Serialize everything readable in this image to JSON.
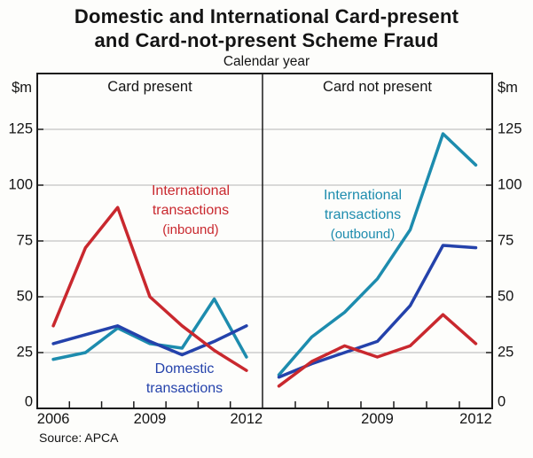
{
  "title": {
    "line1": "Domestic and International Card-present",
    "line2": "and Card-not-present Scheme Fraud"
  },
  "subtitle": "Calendar year",
  "source": "Source: APCA",
  "axis": {
    "unit": "$m"
  },
  "colors": {
    "inbound_red": "#c9282e",
    "domestic_blue": "#2442ab",
    "outbound_teal": "#1d8cae",
    "grid": "#b5b5b5",
    "axis_black": "#1a1a1a"
  },
  "chart_data": {
    "type": "line",
    "x": [
      2006,
      2007,
      2008,
      2009,
      2010,
      2011,
      2012
    ],
    "ylabel": "$m",
    "xlabel": "",
    "ylim": [
      0,
      150
    ],
    "y_ticks": [
      0,
      25,
      50,
      75,
      100,
      125
    ],
    "grid": true,
    "panels": [
      {
        "title": "Card present",
        "series": [
          {
            "name": "International transactions (outbound)",
            "color": "#1d8cae",
            "values": [
              22,
              25,
              36,
              29,
              27,
              49,
              23
            ]
          },
          {
            "name": "Domestic transactions",
            "color": "#2442ab",
            "values": [
              29,
              33,
              37,
              30,
              24,
              30,
              37
            ]
          },
          {
            "name": "International transactions (inbound)",
            "color": "#c9282e",
            "values": [
              37,
              72,
              90,
              50,
              37,
              26,
              17
            ]
          }
        ],
        "x_labels": [
          {
            "text": "2006",
            "index": 0
          },
          {
            "text": "2009",
            "index": 3
          },
          {
            "text": "2012",
            "index": 6
          }
        ]
      },
      {
        "title": "Card not present",
        "series": [
          {
            "name": "International transactions (outbound)",
            "color": "#1d8cae",
            "values": [
              15,
              32,
              43,
              58,
              80,
              123,
              109
            ]
          },
          {
            "name": "Domestic transactions",
            "color": "#2442ab",
            "values": [
              14,
              20,
              25,
              30,
              46,
              73,
              72
            ]
          },
          {
            "name": "International transactions (inbound)",
            "color": "#c9282e",
            "values": [
              10,
              21,
              28,
              23,
              28,
              42,
              29
            ]
          }
        ],
        "x_labels": [
          {
            "text": "2009",
            "index": 3
          },
          {
            "text": "2012",
            "index": 6
          }
        ]
      }
    ],
    "series_labels": [
      {
        "id": "inbound",
        "lines": [
          "International",
          "transactions",
          "(inbound)"
        ],
        "color": "#c9282e"
      },
      {
        "id": "domestic",
        "lines": [
          "Domestic",
          "transactions"
        ],
        "color": "#2442ab"
      },
      {
        "id": "outbound",
        "lines": [
          "International",
          "transactions",
          "(outbound)"
        ],
        "color": "#1d8cae"
      }
    ]
  }
}
